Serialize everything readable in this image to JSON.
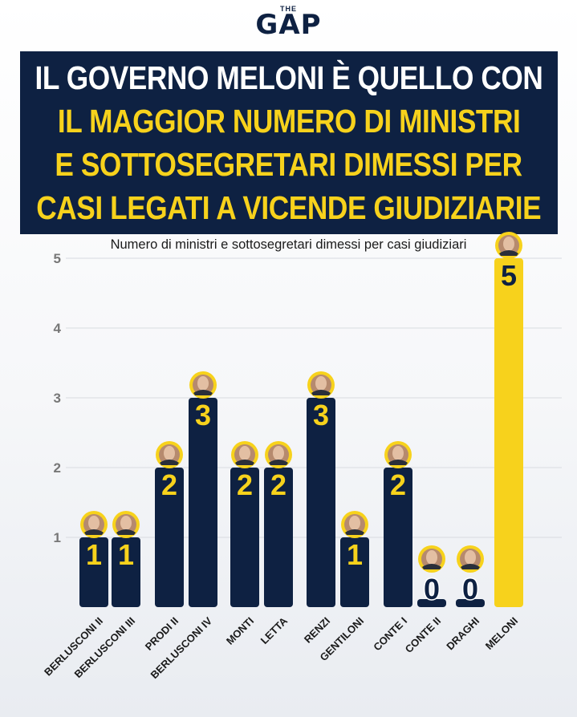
{
  "logo": {
    "small": "THE",
    "big": "GAP"
  },
  "headline": {
    "line1": "IL GOVERNO MELONI È QUELLO CON",
    "line2": "IL MAGGIOR NUMERO DI MINISTRI",
    "line3": "E SOTTOSEGRETARI DIMESSI PER",
    "line4": "CASI LEGATI A VICENDE GIUDIZIARIE"
  },
  "chart_data": {
    "type": "bar",
    "title": "Numero di ministri e sottosegretari dimessi per casi giudiziari",
    "xlabel": "",
    "ylabel": "",
    "ylim": [
      0,
      5
    ],
    "yticks": [
      1,
      2,
      3,
      4,
      5
    ],
    "grid": true,
    "categories": [
      "BERLUSCONI II",
      "BERLUSCONI III",
      "PRODI II",
      "BERLUSCONI IV",
      "MONTI",
      "LETTA",
      "RENZI",
      "GENTILONI",
      "CONTE I",
      "CONTE II",
      "DRAGHI",
      "MELONI"
    ],
    "values": [
      1,
      1,
      2,
      3,
      2,
      2,
      3,
      1,
      2,
      0,
      0,
      5
    ],
    "highlight": "MELONI",
    "colors": {
      "bar": "#0e2142",
      "highlight": "#f7d21c",
      "label": "#f7d21c",
      "highlight_label": "#0e2142",
      "tick": "#777777"
    }
  }
}
